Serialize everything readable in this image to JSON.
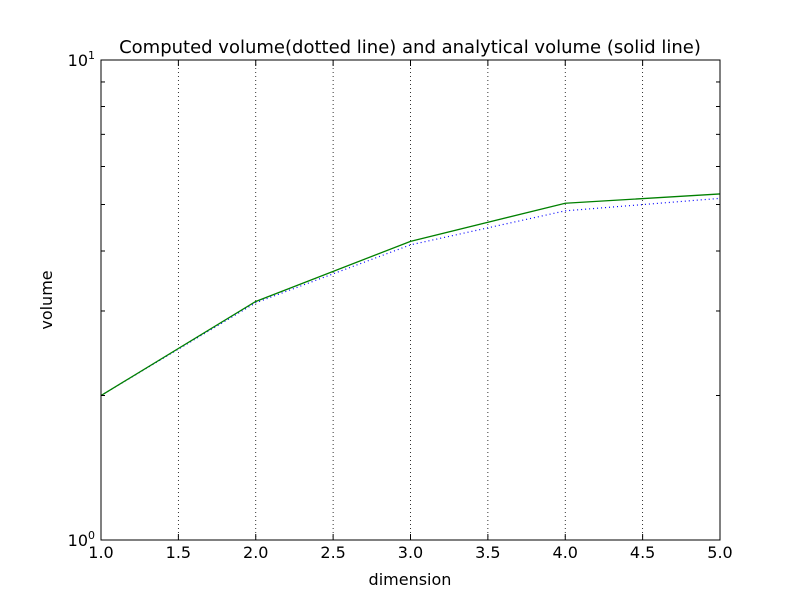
{
  "chart_data": {
    "type": "line",
    "title": "Computed volume(dotted line) and analytical volume (solid line)",
    "xlabel": "dimension",
    "ylabel": "volume",
    "xlim": [
      1.0,
      5.0
    ],
    "ylim": [
      1,
      10
    ],
    "yscale": "log",
    "grid": {
      "x": true,
      "y": false
    },
    "x_ticks": [
      "1.0",
      "1.5",
      "2.0",
      "2.5",
      "3.0",
      "3.5",
      "4.0",
      "4.5",
      "5.0"
    ],
    "y_ticks": [
      {
        "value": 1,
        "base": "10",
        "exp": "0"
      },
      {
        "value": 10,
        "base": "10",
        "exp": "1"
      }
    ],
    "x": [
      1,
      2,
      3,
      4,
      5
    ],
    "series": [
      {
        "style": "dotted",
        "color": "#0000ff",
        "values": [
          2.0,
          3.12,
          4.12,
          4.85,
          5.15
        ]
      },
      {
        "style": "solid",
        "color": "#008000",
        "values": [
          2.0,
          3.14,
          4.19,
          5.03,
          5.26
        ]
      }
    ]
  }
}
